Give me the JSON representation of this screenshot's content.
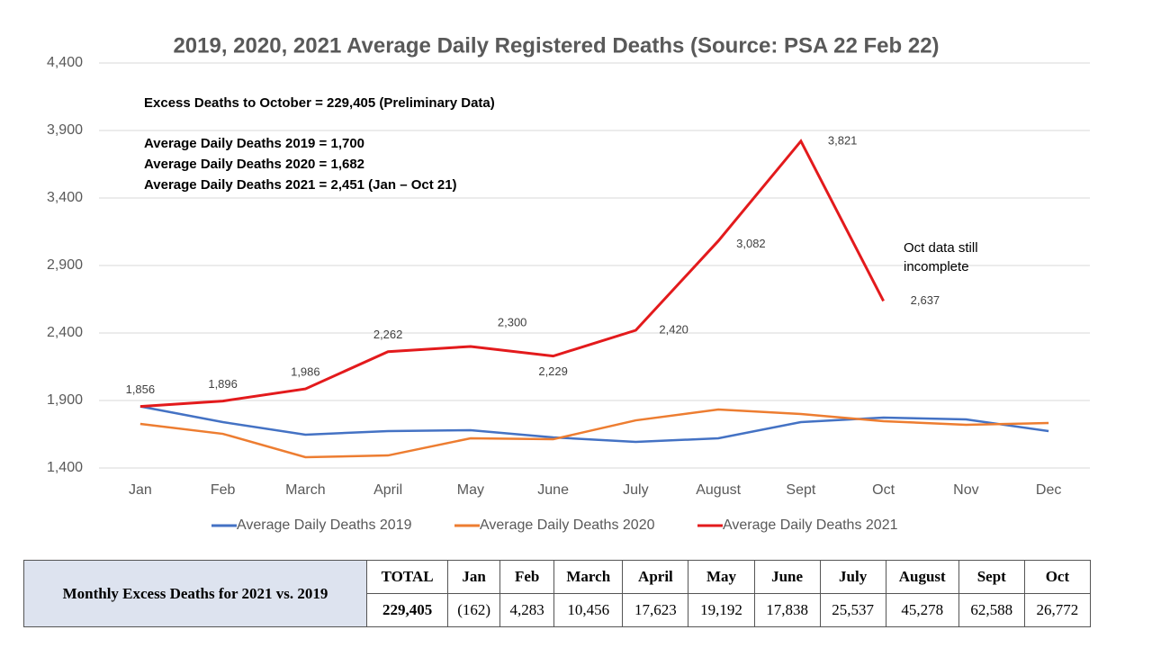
{
  "chart_data": {
    "type": "line",
    "title": "2019, 2020, 2021 Average Daily Registered Deaths (Source: PSA 22 Feb 22)",
    "categories": [
      "Jan",
      "Feb",
      "March",
      "April",
      "May",
      "June",
      "July",
      "August",
      "Sept",
      "Oct",
      "Nov",
      "Dec"
    ],
    "series": [
      {
        "name": "Average Daily Deaths 2019",
        "color": "#4472c4",
        "values": [
          1856,
          1740,
          1647,
          1673,
          1680,
          1627,
          1593,
          1620,
          1740,
          1773,
          1760,
          1673
        ]
      },
      {
        "name": "Average Daily Deaths 2020",
        "color": "#ed7d31",
        "values": [
          1727,
          1653,
          1480,
          1493,
          1620,
          1613,
          1753,
          1833,
          1800,
          1747,
          1720,
          1733
        ]
      },
      {
        "name": "Average Daily Deaths 2021",
        "color": "#e31a1c",
        "values": [
          1856,
          1896,
          1986,
          2262,
          2300,
          2229,
          2420,
          3082,
          3821,
          2637,
          null,
          null
        ],
        "value_labels": [
          "1,856",
          "1,896",
          "1,986",
          "2,262",
          "2,300",
          "2,229",
          "2,420",
          "3,082",
          "3,821",
          "2,637",
          null,
          null
        ]
      }
    ],
    "ylim": [
      1400,
      4400
    ],
    "yticks": [
      {
        "value": 1400,
        "label": "1,400"
      },
      {
        "value": 1900,
        "label": "1,900"
      },
      {
        "value": 2400,
        "label": "2,400"
      },
      {
        "value": 2900,
        "label": "2,900"
      },
      {
        "value": 3400,
        "label": "3,400"
      },
      {
        "value": 3900,
        "label": "3,900"
      },
      {
        "value": 4400,
        "label": "4,400"
      }
    ],
    "grid": true,
    "legend": "bottom",
    "notes": [
      "Excess Deaths to October = 229,405 (Preliminary Data)",
      "Average Daily Deaths 2019 = 1,700",
      "Average Daily Deaths 2020 = 1,682",
      "Average Daily Deaths 2021 = 2,451 (Jan – Oct 21)"
    ],
    "annotation": "Oct data still incomplete"
  },
  "table": {
    "row_header": "Monthly Excess Deaths for 2021 vs. 2019",
    "columns": [
      "TOTAL",
      "Jan",
      "Feb",
      "March",
      "April",
      "May",
      "June",
      "July",
      "August",
      "Sept",
      "Oct"
    ],
    "values": [
      "229,405",
      "(162)",
      "4,283",
      "10,456",
      "17,623",
      "19,192",
      "17,838",
      "25,537",
      "45,278",
      "62,588",
      "26,772"
    ]
  }
}
